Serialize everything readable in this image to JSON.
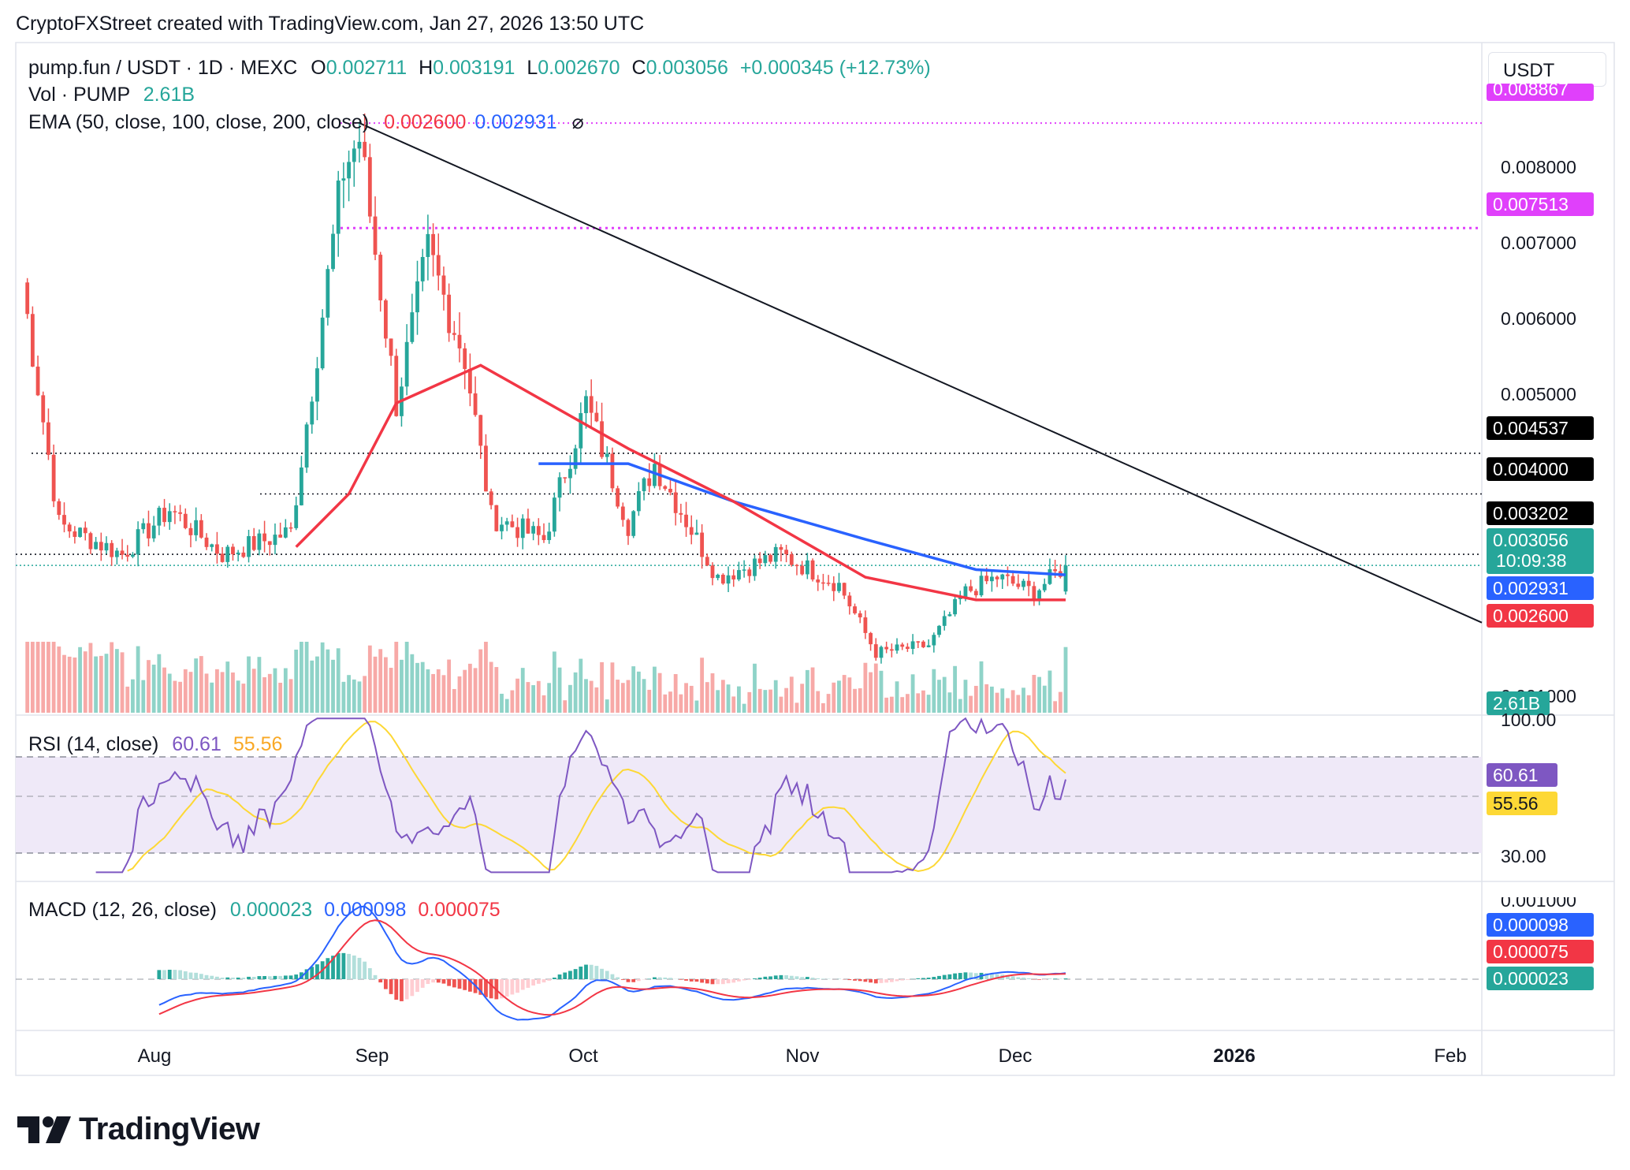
{
  "header": {
    "credit": "CryptoFXStreet created with TradingView.com, Jan 27, 2026 13:50 UTC",
    "symbol": "pump.fun / USDT · 1D · MEXC",
    "o_label": "O",
    "o_value": "0.002711",
    "h_label": "H",
    "h_value": "0.003191",
    "l_label": "L",
    "l_value": "0.002670",
    "c_label": "C",
    "c_value": "0.003056",
    "change": "+0.000345 (+12.73%)",
    "vol_label": "Vol · PUMP",
    "vol_value": "2.61B",
    "ema_label": "EMA (50, close, 100, close, 200, close)",
    "ema1_value": "0.002600",
    "ema2_value": "0.002931",
    "ema_icon": "⌀",
    "currency": "USDT"
  },
  "rsi_header": {
    "label": "RSI (14, close)",
    "rsi_value": "60.61",
    "ma_value": "55.56"
  },
  "macd_header": {
    "label": "MACD (12, 26, close)",
    "hist_value": "0.000023",
    "macd_value": "0.000098",
    "signal_value": "0.000075"
  },
  "price_axis": {
    "ticks": [
      "0.008000",
      "0.007000",
      "0.006000",
      "0.005000"
    ],
    "labels": {
      "top_cut": "0.008867",
      "level_pink": "0.007513",
      "level_4537": "0.004537",
      "level_4000": "0.004000",
      "level_3202": "0.003202",
      "last": "0.003056",
      "countdown": "10:09:38",
      "ema100": "0.002931",
      "ema50": "0.002600",
      "volume": "2.61B",
      "vol_tick_cut": "0.001000"
    }
  },
  "rsi_axis": {
    "top_cut": "100.00",
    "tick30": "30.00",
    "rsi_label": "60.61",
    "ma_label": "55.56"
  },
  "macd_axis": {
    "top_cut": "0.001000",
    "macd_label": "0.000098",
    "signal_label": "0.000075",
    "hist_label": "0.000023"
  },
  "time_axis": [
    "Aug",
    "Sep",
    "Oct",
    "Nov",
    "Dec",
    "2026",
    "Feb"
  ],
  "logo": "TradingView",
  "colors": {
    "up": "#26a69a",
    "down": "#ef5350",
    "ema50": "#f23645",
    "ema100": "#2962ff",
    "rsi": "#7e57c2",
    "rsi_ma": "#fdd835",
    "macd": "#2962ff",
    "signal": "#f23645",
    "pink": "#e040fb",
    "volume_up": "#8fd3c8",
    "volume_down": "#f7a9a7"
  },
  "chart_data": {
    "type": "candlestick",
    "title": "pump.fun / USDT · 1D · MEXC",
    "ylim": [
      0.0018,
      0.0092
    ],
    "x_range": [
      "2025-07-13",
      "2026-01-27"
    ],
    "key_points": [
      {
        "date": "2025-07-13",
        "close": 0.0068
      },
      {
        "date": "2025-07-20",
        "close": 0.0036
      },
      {
        "date": "2025-08-01",
        "close": 0.0032
      },
      {
        "date": "2025-08-10",
        "close": 0.0038
      },
      {
        "date": "2025-08-20",
        "close": 0.0032
      },
      {
        "date": "2025-09-02",
        "close": 0.0035
      },
      {
        "date": "2025-09-12",
        "close": 0.0083
      },
      {
        "date": "2025-09-15",
        "close": 0.0087
      },
      {
        "date": "2025-09-22",
        "close": 0.0052
      },
      {
        "date": "2025-09-28",
        "close": 0.0072
      },
      {
        "date": "2025-10-05",
        "close": 0.0058
      },
      {
        "date": "2025-10-10",
        "close": 0.0037
      },
      {
        "date": "2025-10-20",
        "close": 0.0034
      },
      {
        "date": "2025-10-28",
        "close": 0.0052
      },
      {
        "date": "2025-11-05",
        "close": 0.0036
      },
      {
        "date": "2025-11-10",
        "close": 0.0044
      },
      {
        "date": "2025-11-22",
        "close": 0.0029
      },
      {
        "date": "2025-12-04",
        "close": 0.0032
      },
      {
        "date": "2025-12-15",
        "close": 0.0028
      },
      {
        "date": "2025-12-22",
        "close": 0.0019
      },
      {
        "date": "2026-01-01",
        "close": 0.002
      },
      {
        "date": "2026-01-08",
        "close": 0.0027
      },
      {
        "date": "2026-01-14",
        "close": 0.0029
      },
      {
        "date": "2026-01-21",
        "close": 0.0027
      },
      {
        "date": "2026-01-27",
        "open": 0.002711,
        "high": 0.003191,
        "low": 0.00267,
        "close": 0.003056
      }
    ],
    "ema50": [
      [
        0,
        0
      ],
      [
        0,
        0
      ]
    ],
    "ema50_points": [
      {
        "date": "2025-09-03",
        "value": 0.0033
      },
      {
        "date": "2025-09-13",
        "value": 0.004
      },
      {
        "date": "2025-09-22",
        "value": 0.0052
      },
      {
        "date": "2025-10-08",
        "value": 0.0057
      },
      {
        "date": "2025-11-05",
        "value": 0.0046
      },
      {
        "date": "2025-11-25",
        "value": 0.0039
      },
      {
        "date": "2025-12-20",
        "value": 0.0029
      },
      {
        "date": "2026-01-10",
        "value": 0.0026
      },
      {
        "date": "2026-01-27",
        "value": 0.0026
      }
    ],
    "ema100_points": [
      {
        "date": "2025-10-19",
        "value": 0.0044
      },
      {
        "date": "2025-11-05",
        "value": 0.0044
      },
      {
        "date": "2025-11-25",
        "value": 0.0039
      },
      {
        "date": "2025-12-20",
        "value": 0.0034
      },
      {
        "date": "2026-01-10",
        "value": 0.003
      },
      {
        "date": "2026-01-27",
        "value": 0.002931
      }
    ],
    "levels": [
      0.007513,
      0.004537,
      0.004,
      0.003202,
      0.003056
    ],
    "trendline": [
      {
        "date": "2025-09-15",
        "value": 0.0089
      },
      {
        "date": "2026-02-05",
        "value": 0.0023
      }
    ],
    "rsi": {
      "name": "RSI (14, close)",
      "last": 60.61,
      "ma_last": 55.56,
      "bands": [
        70,
        50,
        30
      ]
    },
    "macd": {
      "name": "MACD (12, 26, close)",
      "macd": 9.8e-05,
      "signal": 7.5e-05,
      "histogram": 2.3e-05
    }
  }
}
